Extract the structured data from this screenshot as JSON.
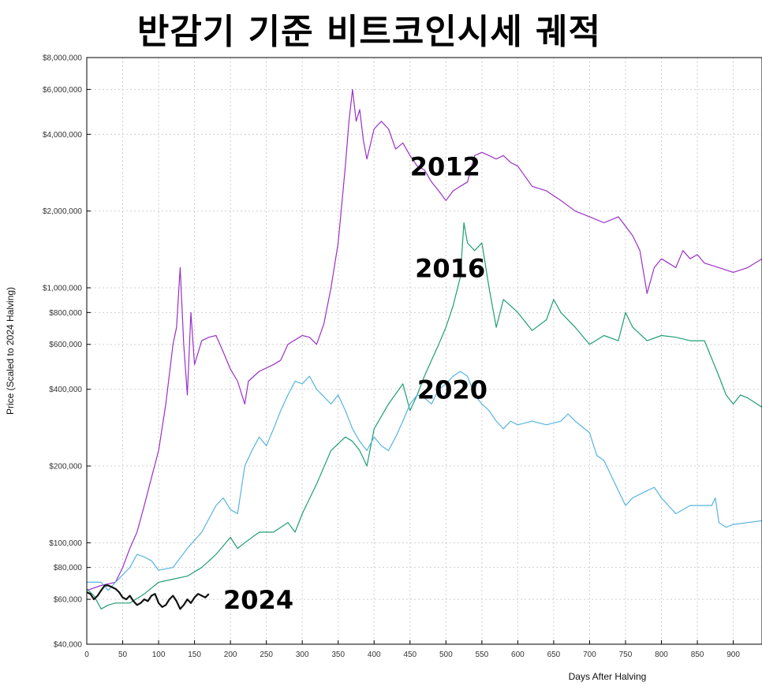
{
  "title": "반감기 기준 비트코인시세 궤적",
  "chart_data": {
    "type": "line",
    "xlabel": "Days After Halving",
    "ylabel": "Price (Scaled to 2024 Halving)",
    "xlim": [
      0,
      940
    ],
    "ylim": [
      40000,
      8000000
    ],
    "y_scale": "log",
    "grid": true,
    "x_ticks": [
      0,
      50,
      100,
      150,
      200,
      250,
      300,
      350,
      400,
      450,
      500,
      550,
      600,
      650,
      700,
      750,
      800,
      850,
      900
    ],
    "y_ticks": [
      {
        "value": 40000,
        "label": "$40,000"
      },
      {
        "value": 60000,
        "label": "$60,000"
      },
      {
        "value": 80000,
        "label": "$80,000"
      },
      {
        "value": 100000,
        "label": "$100,000"
      },
      {
        "value": 200000,
        "label": "$200,000"
      },
      {
        "value": 400000,
        "label": "$400,000"
      },
      {
        "value": 600000,
        "label": "$600,000"
      },
      {
        "value": 800000,
        "label": "$800,000"
      },
      {
        "value": 1000000,
        "label": "$1,000,000"
      },
      {
        "value": 2000000,
        "label": "$2,000,000"
      },
      {
        "value": 4000000,
        "label": "$4,000,000"
      },
      {
        "value": 6000000,
        "label": "$6,000,000"
      },
      {
        "value": 8000000,
        "label": "$8,000,000"
      }
    ],
    "series": [
      {
        "name": "2012",
        "color": "#9b30c8",
        "label_at": [
          450,
          3000000
        ],
        "points": [
          [
            0,
            65000
          ],
          [
            20,
            68000
          ],
          [
            40,
            70000
          ],
          [
            50,
            80000
          ],
          [
            60,
            95000
          ],
          [
            70,
            110000
          ],
          [
            80,
            140000
          ],
          [
            90,
            180000
          ],
          [
            100,
            230000
          ],
          [
            110,
            350000
          ],
          [
            120,
            600000
          ],
          [
            125,
            700000
          ],
          [
            130,
            1200000
          ],
          [
            135,
            600000
          ],
          [
            140,
            380000
          ],
          [
            145,
            800000
          ],
          [
            150,
            500000
          ],
          [
            160,
            620000
          ],
          [
            170,
            640000
          ],
          [
            180,
            650000
          ],
          [
            190,
            560000
          ],
          [
            200,
            480000
          ],
          [
            210,
            430000
          ],
          [
            220,
            350000
          ],
          [
            225,
            430000
          ],
          [
            240,
            470000
          ],
          [
            260,
            500000
          ],
          [
            270,
            520000
          ],
          [
            280,
            600000
          ],
          [
            300,
            650000
          ],
          [
            310,
            640000
          ],
          [
            320,
            600000
          ],
          [
            330,
            720000
          ],
          [
            340,
            1000000
          ],
          [
            350,
            1500000
          ],
          [
            360,
            3000000
          ],
          [
            365,
            4500000
          ],
          [
            370,
            6000000
          ],
          [
            375,
            4500000
          ],
          [
            380,
            5000000
          ],
          [
            385,
            3800000
          ],
          [
            390,
            3200000
          ],
          [
            400,
            4200000
          ],
          [
            410,
            4500000
          ],
          [
            420,
            4200000
          ],
          [
            430,
            3500000
          ],
          [
            440,
            3700000
          ],
          [
            450,
            3300000
          ],
          [
            460,
            3000000
          ],
          [
            470,
            2900000
          ],
          [
            480,
            2600000
          ],
          [
            490,
            2400000
          ],
          [
            500,
            2200000
          ],
          [
            510,
            2400000
          ],
          [
            520,
            2500000
          ],
          [
            530,
            2600000
          ],
          [
            540,
            3300000
          ],
          [
            550,
            3400000
          ],
          [
            560,
            3300000
          ],
          [
            570,
            3200000
          ],
          [
            580,
            3300000
          ],
          [
            590,
            3100000
          ],
          [
            600,
            3000000
          ],
          [
            620,
            2500000
          ],
          [
            640,
            2400000
          ],
          [
            660,
            2200000
          ],
          [
            680,
            2000000
          ],
          [
            700,
            1900000
          ],
          [
            720,
            1800000
          ],
          [
            740,
            1900000
          ],
          [
            760,
            1600000
          ],
          [
            770,
            1400000
          ],
          [
            780,
            950000
          ],
          [
            790,
            1200000
          ],
          [
            800,
            1300000
          ],
          [
            810,
            1250000
          ],
          [
            820,
            1200000
          ],
          [
            830,
            1400000
          ],
          [
            840,
            1300000
          ],
          [
            850,
            1350000
          ],
          [
            860,
            1250000
          ],
          [
            880,
            1200000
          ],
          [
            900,
            1150000
          ],
          [
            920,
            1200000
          ],
          [
            940,
            1300000
          ]
        ]
      },
      {
        "name": "2016",
        "color": "#1f9e74",
        "label_at": [
          457,
          1200000
        ],
        "points": [
          [
            0,
            66000
          ],
          [
            10,
            62000
          ],
          [
            20,
            55000
          ],
          [
            30,
            57000
          ],
          [
            40,
            58000
          ],
          [
            60,
            58000
          ],
          [
            80,
            63000
          ],
          [
            100,
            70000
          ],
          [
            120,
            72000
          ],
          [
            140,
            74000
          ],
          [
            160,
            80000
          ],
          [
            180,
            90000
          ],
          [
            200,
            105000
          ],
          [
            210,
            95000
          ],
          [
            220,
            100000
          ],
          [
            240,
            110000
          ],
          [
            260,
            110000
          ],
          [
            280,
            120000
          ],
          [
            290,
            110000
          ],
          [
            300,
            130000
          ],
          [
            320,
            170000
          ],
          [
            340,
            230000
          ],
          [
            360,
            260000
          ],
          [
            370,
            250000
          ],
          [
            380,
            230000
          ],
          [
            390,
            200000
          ],
          [
            400,
            280000
          ],
          [
            420,
            350000
          ],
          [
            440,
            420000
          ],
          [
            450,
            330000
          ],
          [
            460,
            380000
          ],
          [
            470,
            450000
          ],
          [
            480,
            520000
          ],
          [
            490,
            600000
          ],
          [
            500,
            700000
          ],
          [
            510,
            850000
          ],
          [
            520,
            1100000
          ],
          [
            525,
            1800000
          ],
          [
            530,
            1500000
          ],
          [
            540,
            1400000
          ],
          [
            550,
            1500000
          ],
          [
            560,
            1000000
          ],
          [
            570,
            700000
          ],
          [
            580,
            900000
          ],
          [
            590,
            850000
          ],
          [
            600,
            800000
          ],
          [
            620,
            680000
          ],
          [
            640,
            750000
          ],
          [
            650,
            900000
          ],
          [
            660,
            800000
          ],
          [
            680,
            700000
          ],
          [
            700,
            600000
          ],
          [
            720,
            650000
          ],
          [
            740,
            620000
          ],
          [
            750,
            800000
          ],
          [
            760,
            700000
          ],
          [
            780,
            620000
          ],
          [
            800,
            650000
          ],
          [
            820,
            640000
          ],
          [
            840,
            620000
          ],
          [
            860,
            620000
          ],
          [
            880,
            450000
          ],
          [
            890,
            380000
          ],
          [
            900,
            350000
          ],
          [
            910,
            380000
          ],
          [
            920,
            370000
          ],
          [
            940,
            340000
          ]
        ]
      },
      {
        "name": "2020",
        "color": "#56b4e0",
        "label_at": [
          460,
          400000
        ],
        "points": [
          [
            0,
            70000
          ],
          [
            20,
            70000
          ],
          [
            30,
            65000
          ],
          [
            40,
            70000
          ],
          [
            60,
            80000
          ],
          [
            70,
            90000
          ],
          [
            80,
            88000
          ],
          [
            90,
            85000
          ],
          [
            100,
            78000
          ],
          [
            120,
            80000
          ],
          [
            140,
            95000
          ],
          [
            160,
            110000
          ],
          [
            180,
            140000
          ],
          [
            190,
            150000
          ],
          [
            200,
            135000
          ],
          [
            210,
            130000
          ],
          [
            220,
            200000
          ],
          [
            230,
            230000
          ],
          [
            240,
            260000
          ],
          [
            250,
            240000
          ],
          [
            260,
            280000
          ],
          [
            270,
            330000
          ],
          [
            280,
            380000
          ],
          [
            290,
            430000
          ],
          [
            300,
            420000
          ],
          [
            310,
            450000
          ],
          [
            320,
            400000
          ],
          [
            340,
            350000
          ],
          [
            350,
            380000
          ],
          [
            360,
            330000
          ],
          [
            370,
            280000
          ],
          [
            380,
            250000
          ],
          [
            390,
            230000
          ],
          [
            400,
            260000
          ],
          [
            410,
            240000
          ],
          [
            420,
            230000
          ],
          [
            430,
            260000
          ],
          [
            440,
            300000
          ],
          [
            450,
            350000
          ],
          [
            460,
            380000
          ],
          [
            470,
            370000
          ],
          [
            480,
            350000
          ],
          [
            490,
            400000
          ],
          [
            500,
            420000
          ],
          [
            510,
            450000
          ],
          [
            520,
            470000
          ],
          [
            530,
            450000
          ],
          [
            540,
            380000
          ],
          [
            550,
            350000
          ],
          [
            560,
            330000
          ],
          [
            570,
            300000
          ],
          [
            580,
            280000
          ],
          [
            590,
            300000
          ],
          [
            600,
            290000
          ],
          [
            620,
            300000
          ],
          [
            640,
            290000
          ],
          [
            660,
            300000
          ],
          [
            670,
            320000
          ],
          [
            680,
            300000
          ],
          [
            700,
            270000
          ],
          [
            710,
            220000
          ],
          [
            720,
            210000
          ],
          [
            740,
            160000
          ],
          [
            750,
            140000
          ],
          [
            760,
            150000
          ],
          [
            780,
            160000
          ],
          [
            790,
            165000
          ],
          [
            800,
            150000
          ],
          [
            820,
            130000
          ],
          [
            840,
            140000
          ],
          [
            860,
            140000
          ],
          [
            870,
            140000
          ],
          [
            875,
            150000
          ],
          [
            880,
            120000
          ],
          [
            890,
            115000
          ],
          [
            900,
            118000
          ],
          [
            920,
            120000
          ],
          [
            940,
            122000
          ]
        ]
      },
      {
        "name": "2024",
        "color": "#111111",
        "label_at": [
          190,
          60000
        ],
        "points": [
          [
            0,
            64000
          ],
          [
            5,
            63000
          ],
          [
            10,
            60000
          ],
          [
            15,
            62000
          ],
          [
            20,
            65000
          ],
          [
            25,
            68000
          ],
          [
            30,
            68000
          ],
          [
            35,
            67000
          ],
          [
            40,
            66000
          ],
          [
            45,
            64000
          ],
          [
            50,
            61000
          ],
          [
            55,
            60000
          ],
          [
            60,
            62000
          ],
          [
            65,
            59000
          ],
          [
            70,
            57000
          ],
          [
            75,
            58000
          ],
          [
            80,
            60000
          ],
          [
            85,
            59000
          ],
          [
            90,
            62000
          ],
          [
            95,
            63000
          ],
          [
            100,
            58000
          ],
          [
            105,
            56000
          ],
          [
            110,
            57000
          ],
          [
            115,
            60000
          ],
          [
            120,
            62000
          ],
          [
            125,
            59000
          ],
          [
            130,
            55000
          ],
          [
            135,
            57000
          ],
          [
            140,
            60000
          ],
          [
            145,
            58000
          ],
          [
            150,
            61000
          ],
          [
            155,
            63000
          ],
          [
            160,
            62000
          ],
          [
            165,
            61000
          ],
          [
            170,
            63000
          ]
        ]
      }
    ]
  }
}
